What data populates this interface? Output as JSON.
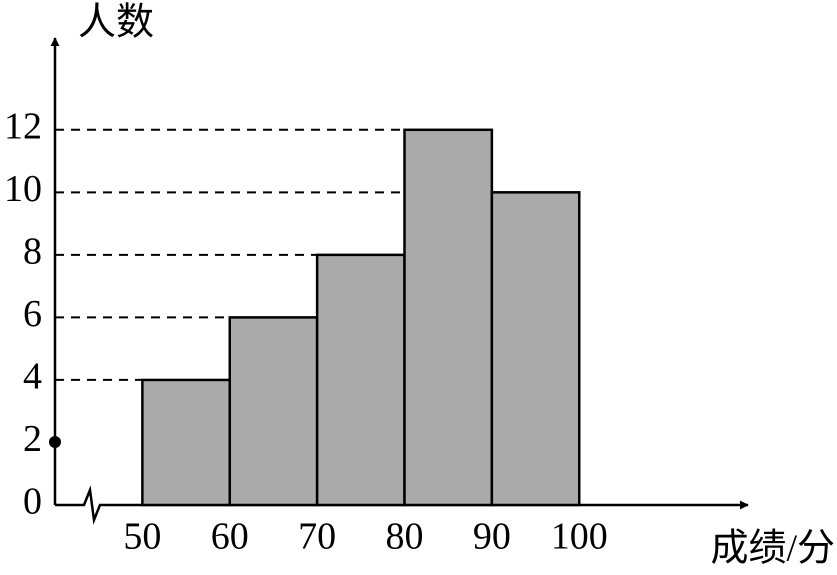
{
  "chart_data": {
    "type": "histogram",
    "x_label": "成绩/分",
    "y_label": "人数",
    "bins": [
      50,
      60,
      70,
      80,
      90,
      100
    ],
    "values": [
      4,
      6,
      8,
      12,
      10
    ],
    "color": "#aaaaaa",
    "xlim": [
      40,
      120
    ],
    "ylim": [
      0,
      15
    ],
    "yticks": [
      0,
      2,
      4,
      6,
      8,
      10,
      12
    ]
  }
}
